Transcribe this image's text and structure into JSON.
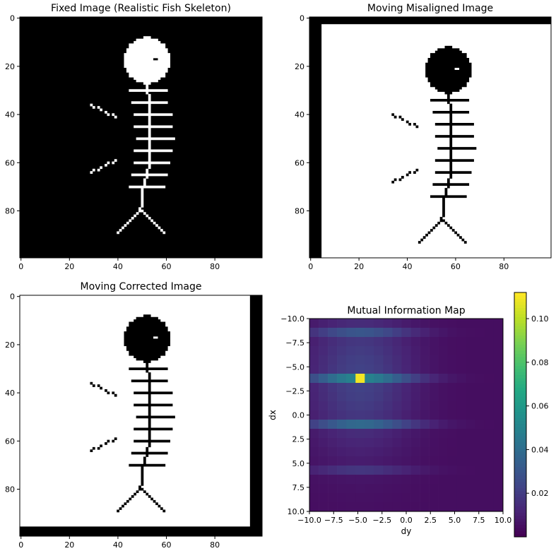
{
  "panels": [
    {
      "title": "Fixed Image (Realistic Fish Skeleton)",
      "image": {
        "size": 100,
        "fish_offset": [
          0,
          0
        ],
        "invert": false,
        "pad_left": 0,
        "pad_top": 0,
        "pad_right": 0,
        "pad_bottom": 0
      },
      "x_ticks": [
        "0",
        "20",
        "40",
        "60",
        "80"
      ],
      "y_ticks": [
        "0",
        "20",
        "40",
        "60",
        "80"
      ]
    },
    {
      "title": "Moving Misaligned Image",
      "image": {
        "size": 100,
        "fish_offset": [
          5,
          4
        ],
        "invert": true,
        "pad_left": 5,
        "pad_top": 3,
        "pad_right": 0,
        "pad_bottom": 0
      },
      "x_ticks": [
        "0",
        "20",
        "40",
        "60",
        "80"
      ],
      "y_ticks": [
        "0",
        "20",
        "40",
        "60",
        "80"
      ]
    },
    {
      "title": "Moving Corrected Image",
      "image": {
        "size": 100,
        "fish_offset": [
          0,
          0
        ],
        "invert": true,
        "pad_left": 0,
        "pad_top": 0,
        "pad_right": 5,
        "pad_bottom": 4
      },
      "x_ticks": [
        "0",
        "20",
        "40",
        "60",
        "80"
      ],
      "y_ticks": [
        "0",
        "20",
        "40",
        "60",
        "80"
      ]
    }
  ],
  "chart_data": {
    "type": "heatmap",
    "title": "Mutual Information Map",
    "xlabel": "dy",
    "ylabel": "dx",
    "xlim": [
      -10,
      10
    ],
    "ylim": [
      10,
      -10
    ],
    "x_ticks": [
      "−10.0",
      "−7.5",
      "−5.0",
      "−2.5",
      "0.0",
      "2.5",
      "5.0",
      "7.5",
      "10.0"
    ],
    "y_ticks": [
      "−10.0",
      "−7.5",
      "−5.0",
      "−2.5",
      "0.0",
      "2.5",
      "5.0",
      "7.5",
      "10.0"
    ],
    "colorbar": {
      "min": 0.0,
      "max": 0.112,
      "ticks": [
        "0.02",
        "0.04",
        "0.06",
        "0.08",
        "0.10"
      ]
    },
    "colormap": "viridis",
    "grid": false,
    "peak": {
      "dy": -5,
      "dx": -4,
      "value": 0.11
    }
  }
}
